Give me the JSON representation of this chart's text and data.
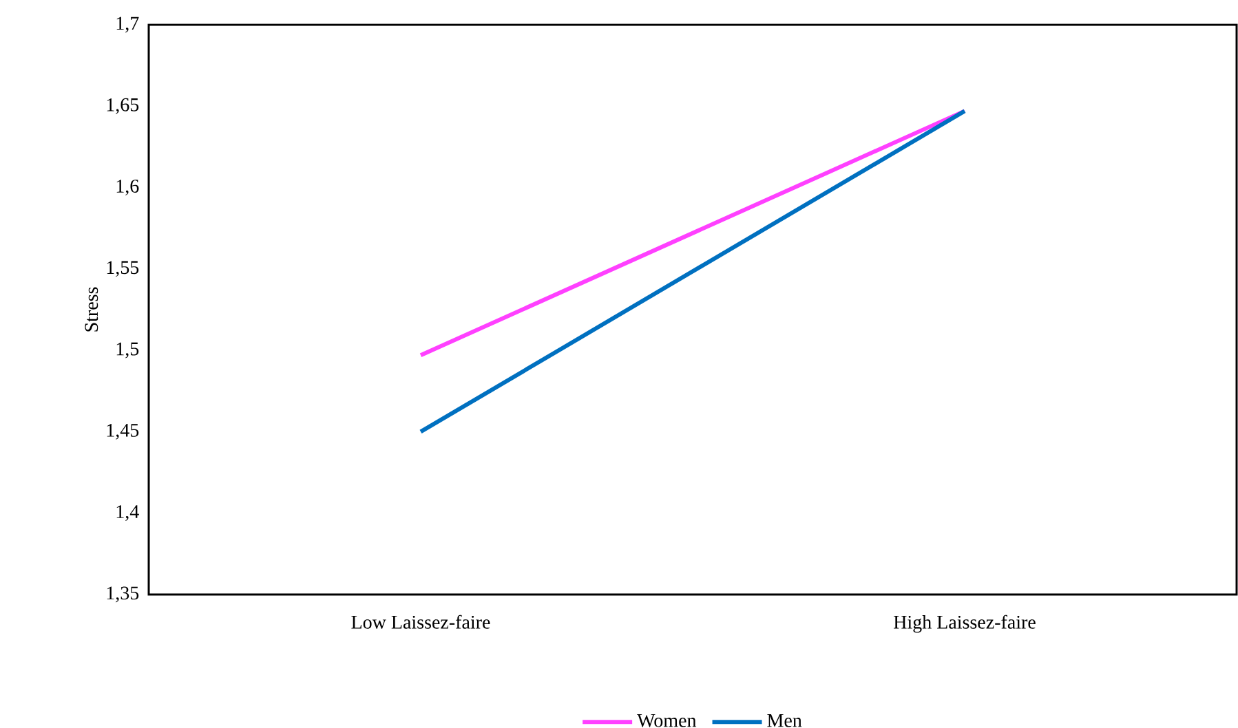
{
  "chart_data": {
    "type": "line",
    "ylabel": "Stress",
    "categories": [
      "Low Laissez-faire",
      "High Laissez-faire"
    ],
    "series": [
      {
        "name": "Women",
        "color": "#ff40ff",
        "values": [
          1.497,
          1.647
        ]
      },
      {
        "name": "Men",
        "color": "#0070c0",
        "values": [
          1.45,
          1.647
        ]
      }
    ],
    "ylim": [
      1.35,
      1.7
    ],
    "yticks": [
      {
        "value": 1.35,
        "label": "1,35"
      },
      {
        "value": 1.4,
        "label": "1,4"
      },
      {
        "value": 1.45,
        "label": "1,45"
      },
      {
        "value": 1.5,
        "label": "1,5"
      },
      {
        "value": 1.55,
        "label": "1,55"
      },
      {
        "value": 1.6,
        "label": "1,6"
      },
      {
        "value": 1.65,
        "label": "1,65"
      },
      {
        "value": 1.7,
        "label": "1,7"
      }
    ],
    "grid": false,
    "legend": "bottom",
    "marker": "none",
    "line_style": "solid"
  }
}
